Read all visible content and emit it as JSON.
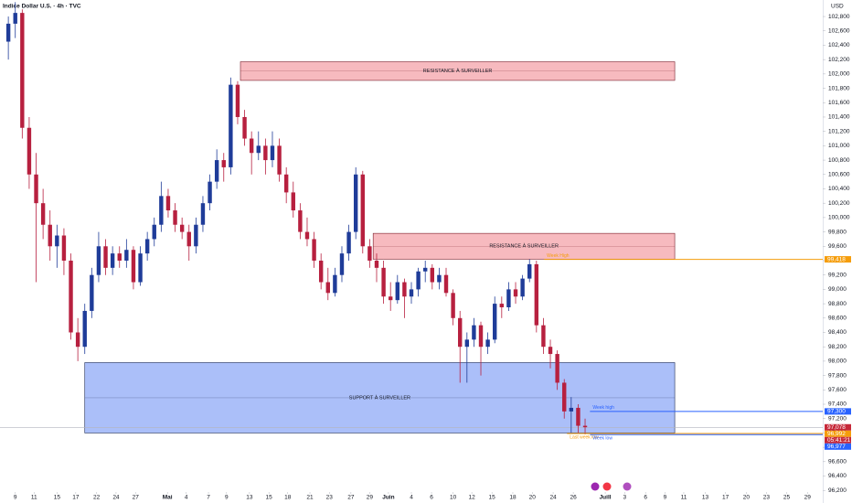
{
  "chart_data": {
    "type": "candlestick",
    "title": "Indice Dollar U.S. · 4h · TVC",
    "y_unit_label": "USD",
    "up_color": "#1f3c99",
    "down_color": "#b7203f",
    "x": [
      -1,
      0,
      1,
      2,
      3,
      4,
      5,
      6,
      7,
      8,
      9,
      10,
      11,
      12,
      13,
      14,
      15,
      16,
      17,
      18,
      19,
      20,
      21,
      22,
      23,
      24,
      25,
      26,
      27,
      28,
      29,
      30,
      31,
      32,
      33,
      34,
      35,
      36,
      37,
      38,
      39,
      40,
      41,
      42,
      43,
      44,
      45,
      46,
      47,
      48,
      49,
      50,
      51,
      52,
      53,
      54,
      55,
      56,
      57,
      58,
      59,
      60,
      61,
      62,
      63,
      64,
      65,
      66,
      67,
      68,
      69,
      70,
      71,
      72,
      73,
      74,
      75,
      76,
      77,
      78,
      79,
      80,
      81,
      82
    ],
    "values": [
      [
        102.45,
        102.8,
        102.2,
        102.7
      ],
      [
        102.7,
        103.0,
        102.5,
        102.85
      ],
      [
        102.85,
        102.9,
        101.1,
        101.25
      ],
      [
        101.25,
        101.4,
        100.4,
        100.6
      ],
      [
        100.6,
        100.9,
        99.1,
        100.2
      ],
      [
        100.2,
        100.4,
        99.7,
        99.9
      ],
      [
        99.9,
        100.1,
        99.4,
        99.6
      ],
      [
        99.6,
        99.9,
        99.3,
        99.75
      ],
      [
        99.75,
        99.85,
        99.2,
        99.4
      ],
      [
        99.4,
        99.5,
        98.3,
        98.4
      ],
      [
        98.4,
        98.6,
        98.0,
        98.2
      ],
      [
        98.2,
        98.8,
        98.1,
        98.7
      ],
      [
        98.7,
        99.3,
        98.6,
        99.2
      ],
      [
        99.2,
        99.8,
        99.1,
        99.6
      ],
      [
        99.6,
        99.7,
        99.2,
        99.3
      ],
      [
        99.3,
        99.6,
        99.2,
        99.5
      ],
      [
        99.5,
        99.6,
        99.3,
        99.4
      ],
      [
        99.4,
        99.7,
        99.3,
        99.55
      ],
      [
        99.55,
        99.6,
        99.0,
        99.1
      ],
      [
        99.1,
        99.6,
        99.05,
        99.5
      ],
      [
        99.5,
        99.8,
        99.4,
        99.7
      ],
      [
        99.7,
        100.0,
        99.6,
        99.9
      ],
      [
        99.9,
        100.5,
        99.8,
        100.3
      ],
      [
        100.3,
        100.4,
        100.0,
        100.1
      ],
      [
        100.1,
        100.2,
        99.8,
        99.9
      ],
      [
        99.9,
        100.0,
        99.7,
        99.8
      ],
      [
        99.8,
        99.9,
        99.4,
        99.6
      ],
      [
        99.6,
        100.0,
        99.5,
        99.9
      ],
      [
        99.9,
        100.3,
        99.8,
        100.2
      ],
      [
        100.2,
        100.6,
        100.1,
        100.5
      ],
      [
        100.5,
        100.95,
        100.4,
        100.8
      ],
      [
        100.8,
        100.9,
        100.5,
        100.7
      ],
      [
        100.7,
        101.95,
        100.6,
        101.85
      ],
      [
        101.85,
        101.9,
        101.3,
        101.4
      ],
      [
        101.4,
        101.5,
        101.0,
        101.1
      ],
      [
        101.1,
        101.2,
        100.6,
        100.9
      ],
      [
        100.9,
        101.2,
        100.8,
        101.0
      ],
      [
        101.0,
        101.1,
        100.6,
        100.8
      ],
      [
        100.8,
        101.2,
        100.7,
        101.0
      ],
      [
        101.0,
        101.1,
        100.5,
        100.6
      ],
      [
        100.6,
        100.7,
        100.2,
        100.35
      ],
      [
        100.35,
        100.5,
        100.0,
        100.1
      ],
      [
        100.1,
        100.2,
        99.7,
        99.8
      ],
      [
        99.8,
        100.0,
        99.6,
        99.7
      ],
      [
        99.7,
        99.8,
        99.3,
        99.4
      ],
      [
        99.4,
        99.5,
        99.0,
        99.1
      ],
      [
        99.1,
        99.3,
        98.85,
        98.95
      ],
      [
        98.95,
        99.3,
        98.9,
        99.2
      ],
      [
        99.2,
        99.6,
        99.1,
        99.5
      ],
      [
        99.5,
        99.9,
        99.4,
        99.8
      ],
      [
        99.8,
        100.7,
        99.7,
        100.6
      ],
      [
        100.6,
        100.65,
        99.5,
        99.6
      ],
      [
        99.6,
        99.7,
        99.3,
        99.4
      ],
      [
        99.4,
        99.5,
        99.1,
        99.3
      ],
      [
        99.3,
        99.4,
        98.8,
        98.9
      ],
      [
        98.9,
        99.1,
        98.7,
        98.85
      ],
      [
        98.85,
        99.2,
        98.8,
        99.1
      ],
      [
        99.1,
        99.15,
        98.6,
        98.9
      ],
      [
        98.9,
        99.1,
        98.8,
        99.0
      ],
      [
        99.0,
        99.3,
        98.9,
        99.25
      ],
      [
        99.25,
        99.4,
        99.1,
        99.3
      ],
      [
        99.3,
        99.35,
        99.0,
        99.1
      ],
      [
        99.1,
        99.3,
        99.0,
        99.2
      ],
      [
        99.2,
        99.3,
        98.9,
        98.95
      ],
      [
        98.95,
        99.0,
        98.5,
        98.6
      ],
      [
        98.6,
        98.7,
        97.7,
        98.2
      ],
      [
        98.2,
        98.4,
        97.7,
        98.3
      ],
      [
        98.3,
        98.6,
        98.2,
        98.5
      ],
      [
        98.5,
        98.55,
        97.8,
        98.2
      ],
      [
        98.2,
        98.4,
        98.1,
        98.3
      ],
      [
        98.3,
        98.9,
        98.25,
        98.8
      ],
      [
        98.8,
        98.9,
        98.6,
        98.75
      ],
      [
        98.75,
        99.1,
        98.7,
        99.0
      ],
      [
        99.0,
        99.1,
        98.8,
        98.9
      ],
      [
        98.9,
        99.2,
        98.85,
        99.15
      ],
      [
        99.15,
        99.42,
        99.1,
        99.35
      ],
      [
        99.35,
        99.4,
        98.4,
        98.5
      ],
      [
        98.5,
        98.6,
        98.1,
        98.2
      ],
      [
        98.2,
        98.3,
        97.9,
        98.1
      ],
      [
        98.1,
        98.15,
        97.6,
        97.7
      ],
      [
        97.7,
        97.75,
        97.2,
        97.3
      ],
      [
        97.3,
        97.5,
        97.0,
        97.35
      ],
      [
        97.35,
        97.4,
        97.0,
        97.1
      ],
      [
        97.1,
        97.2,
        96.98,
        97.08
      ]
    ],
    "xlim": [
      -2.2,
      116.2
    ],
    "xticks": [
      {
        "value": 0.0,
        "label": "9"
      },
      {
        "value": 2.7,
        "label": "11"
      },
      {
        "value": 6.0,
        "label": "15"
      },
      {
        "value": 8.7,
        "label": "17"
      },
      {
        "value": 11.7,
        "label": "22"
      },
      {
        "value": 14.5,
        "label": "24"
      },
      {
        "value": 17.3,
        "label": "27"
      },
      {
        "value": 21.9,
        "label": "Mai"
      },
      {
        "value": 24.6,
        "label": "4"
      },
      {
        "value": 27.8,
        "label": "7"
      },
      {
        "value": 30.4,
        "label": "9"
      },
      {
        "value": 33.7,
        "label": "13"
      },
      {
        "value": 36.5,
        "label": "15"
      },
      {
        "value": 39.2,
        "label": "18"
      },
      {
        "value": 42.4,
        "label": "21"
      },
      {
        "value": 45.2,
        "label": "23"
      },
      {
        "value": 48.3,
        "label": "27"
      },
      {
        "value": 51.0,
        "label": "29"
      },
      {
        "value": 53.7,
        "label": "Juin"
      },
      {
        "value": 57.0,
        "label": "4"
      },
      {
        "value": 59.9,
        "label": "6"
      },
      {
        "value": 63.0,
        "label": "10"
      },
      {
        "value": 65.7,
        "label": "12"
      },
      {
        "value": 68.6,
        "label": "15"
      },
      {
        "value": 71.6,
        "label": "18"
      },
      {
        "value": 74.4,
        "label": "20"
      },
      {
        "value": 77.4,
        "label": "24"
      },
      {
        "value": 80.3,
        "label": "26"
      },
      {
        "value": 84.9,
        "label": "Juill"
      },
      {
        "value": 87.7,
        "label": "3"
      },
      {
        "value": 90.7,
        "label": "6"
      },
      {
        "value": 93.5,
        "label": "9"
      },
      {
        "value": 96.2,
        "label": "11"
      },
      {
        "value": 99.3,
        "label": "13"
      },
      {
        "value": 102.2,
        "label": "17"
      },
      {
        "value": 105.2,
        "label": "20"
      },
      {
        "value": 108.1,
        "label": "23"
      },
      {
        "value": 111.0,
        "label": "25"
      },
      {
        "value": 114.0,
        "label": "29"
      }
    ],
    "ylim": [
      96.05,
      103.03
    ],
    "yticks": [
      {
        "value": 96.2,
        "label": "96,200"
      },
      {
        "value": 96.4,
        "label": "96,400"
      },
      {
        "value": 96.6,
        "label": "96,600"
      },
      {
        "value": 96.8,
        "label": "96,800"
      },
      {
        "value": 97.0,
        "label": "97,000"
      },
      {
        "value": 97.2,
        "label": "97,200"
      },
      {
        "value": 97.4,
        "label": "97,400"
      },
      {
        "value": 97.6,
        "label": "97,600"
      },
      {
        "value": 97.8,
        "label": "97,800"
      },
      {
        "value": 98.0,
        "label": "98,000"
      },
      {
        "value": 98.2,
        "label": "98,200"
      },
      {
        "value": 98.4,
        "label": "98,400"
      },
      {
        "value": 98.6,
        "label": "98,600"
      },
      {
        "value": 98.8,
        "label": "98,800"
      },
      {
        "value": 99.0,
        "label": "99,000"
      },
      {
        "value": 99.2,
        "label": "99,200"
      },
      {
        "value": 99.4,
        "label": "99,400"
      },
      {
        "value": 99.6,
        "label": "99,600"
      },
      {
        "value": 99.8,
        "label": "99,800"
      },
      {
        "value": 100.0,
        "label": "100,000"
      },
      {
        "value": 100.2,
        "label": "100,200"
      },
      {
        "value": 100.4,
        "label": "100,400"
      },
      {
        "value": 100.6,
        "label": "100,600"
      },
      {
        "value": 100.8,
        "label": "100,800"
      },
      {
        "value": 101.0,
        "label": "101,000"
      },
      {
        "value": 101.2,
        "label": "101,200"
      },
      {
        "value": 101.4,
        "label": "101,400"
      },
      {
        "value": 101.6,
        "label": "101,600"
      },
      {
        "value": 101.8,
        "label": "101,800"
      },
      {
        "value": 102.0,
        "label": "102,000"
      },
      {
        "value": 102.2,
        "label": "102,200"
      },
      {
        "value": 102.4,
        "label": "102,400"
      },
      {
        "value": 102.6,
        "label": "102,600"
      },
      {
        "value": 102.8,
        "label": "102,800"
      }
    ],
    "grid": false,
    "zones": [
      {
        "label": "RESISTANCE À SURVEILLER",
        "x": [
          32.4,
          94.9
        ],
        "y": [
          102.17,
          101.91
        ],
        "color": "#f4a3aa",
        "stroke": "#7a1f2b"
      },
      {
        "label": "RESISTANCE À SURVEILLER",
        "x": [
          51.5,
          94.9
        ],
        "y": [
          99.78,
          99.42
        ],
        "color": "#f4a3aa",
        "stroke": "#7a1f2b"
      },
      {
        "label": "SUPPORT À SURVEILLER",
        "x": [
          10.0,
          94.9
        ],
        "y": [
          97.98,
          97.0
        ],
        "color": "#8fa9f7",
        "stroke": "#1c2a55"
      }
    ],
    "levels": [
      {
        "value": 99.418,
        "label": "99,418",
        "text": "Week High",
        "x0": 76.1,
        "color": "#f59d0b"
      },
      {
        "value": 97.3,
        "label": "97,300",
        "text": "Week high",
        "x0": 82.7,
        "color": "#2962ff"
      },
      {
        "value": 96.992,
        "label": "96,992",
        "text": "Last week low",
        "x0": 79.4,
        "color": "#f59d0b"
      },
      {
        "value": 96.977,
        "label": "96,977",
        "text": "Week low",
        "x0": 82.7,
        "color": "#2962ff"
      }
    ],
    "last_price": {
      "value": 97.078,
      "label": "97,078",
      "countdown": "05:41:21",
      "color": "#c62839"
    }
  }
}
